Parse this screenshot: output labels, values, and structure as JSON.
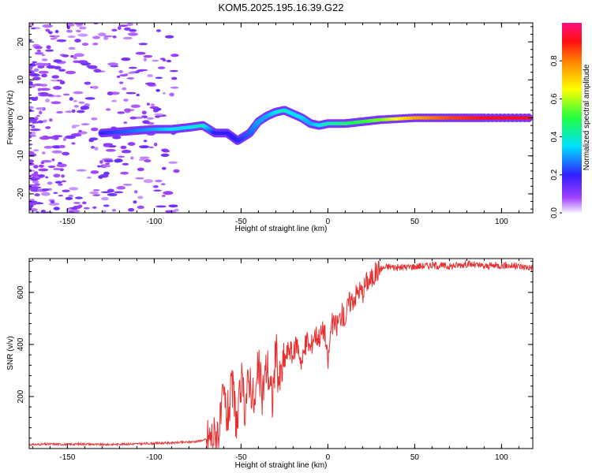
{
  "title": "KOM5.2025.195.16.39.G22",
  "colors": {
    "snr_line": "#e83030",
    "axis": "#000000",
    "background": "#ffffff"
  },
  "chart_data": [
    {
      "type": "heatmap",
      "xlabel": "Height of straight line (km)",
      "ylabel": "Frequency (Hz)",
      "xlim": [
        -172,
        118
      ],
      "ylim": [
        -25,
        25
      ],
      "xticks": [
        -150,
        -100,
        -50,
        0,
        50,
        100
      ],
      "yticks": [
        -20,
        -10,
        0,
        10,
        20
      ],
      "xtick_labels": [
        "-150",
        "-100",
        "-50",
        "0",
        "50",
        "100"
      ],
      "ytick_labels": [
        "-20",
        "-10",
        "0",
        "10",
        "20"
      ],
      "colorbar": {
        "label": "Normalized spectral amplitude",
        "range": [
          0.0,
          1.0
        ],
        "ticks": [
          0.0,
          0.2,
          0.4,
          0.6,
          0.8
        ],
        "tick_labels": [
          "0.0",
          "0.2",
          "0.4",
          "0.6",
          "0.8"
        ],
        "colormap": "rainbow (violet-blue-cyan-green-yellow-red-pink)"
      },
      "ridge": {
        "x": [
          -130,
          -115,
          -100,
          -90,
          -80,
          -72,
          -65,
          -58,
          -52,
          -45,
          -40,
          -35,
          -30,
          -25,
          -20,
          -15,
          -10,
          -5,
          0,
          10,
          20,
          30,
          50,
          70,
          90,
          118
        ],
        "y": [
          -4,
          -3.5,
          -3,
          -3,
          -2.5,
          -2,
          -4,
          -4,
          -6,
          -4,
          -1,
          0.5,
          1.5,
          2,
          1,
          0,
          -1.5,
          -2,
          -1.5,
          -1.5,
          -1,
          -0.5,
          0,
          0,
          0,
          0
        ],
        "amplitude": [
          0.2,
          0.25,
          0.3,
          0.35,
          0.35,
          0.4,
          0.2,
          0.2,
          0.2,
          0.25,
          0.3,
          0.3,
          0.35,
          0.4,
          0.35,
          0.35,
          0.3,
          0.35,
          0.4,
          0.45,
          0.5,
          0.55,
          0.75,
          0.85,
          0.9,
          0.9
        ]
      }
    },
    {
      "type": "line",
      "xlabel": "Height of straight line (km)",
      "ylabel": "SNR (v/v)",
      "xlim": [
        -172,
        118
      ],
      "ylim": [
        0,
        730
      ],
      "xticks": [
        -150,
        -100,
        -50,
        0,
        50,
        100
      ],
      "yticks": [
        200,
        400,
        600
      ],
      "xtick_labels": [
        "-150",
        "-100",
        "-50",
        "0",
        "50",
        "100"
      ],
      "ytick_labels": [
        "200",
        "400",
        "600"
      ],
      "series": [
        {
          "x": [
            -172,
            -160,
            -150,
            -140,
            -130,
            -120,
            -110,
            -100,
            -90,
            -80,
            -75,
            -70,
            -65,
            -62,
            -60,
            -58,
            -55,
            -52,
            -50,
            -48,
            -45,
            -42,
            -40,
            -38,
            -35,
            -32,
            -30,
            -28,
            -25,
            -22,
            -20,
            -18,
            -15,
            -12,
            -10,
            -8,
            -5,
            -2,
            0,
            2,
            5,
            8,
            10,
            12,
            15,
            18,
            20,
            22,
            25,
            28,
            30,
            35,
            40,
            50,
            60,
            70,
            80,
            90,
            100,
            110,
            118
          ],
          "values": [
            15,
            17,
            16,
            18,
            15,
            17,
            18,
            20,
            22,
            25,
            28,
            35,
            50,
            90,
            200,
            120,
            230,
            80,
            260,
            160,
            280,
            150,
            320,
            200,
            330,
            180,
            380,
            250,
            340,
            390,
            350,
            410,
            330,
            420,
            380,
            440,
            430,
            460,
            320,
            480,
            470,
            520,
            500,
            560,
            580,
            610,
            600,
            640,
            650,
            680,
            690,
            700,
            695,
            700,
            705,
            700,
            710,
            700,
            705,
            700,
            695
          ]
        }
      ]
    }
  ]
}
